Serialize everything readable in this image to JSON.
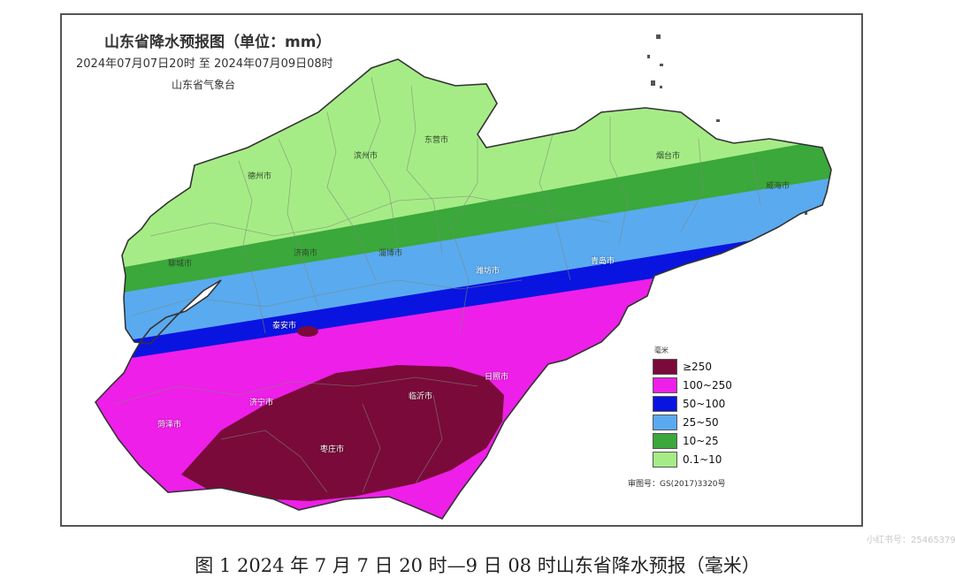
{
  "map": {
    "title": "山东省降水预报图（单位：mm）",
    "valid_period": "2024年07月07日20时  至  2024年07月09日08时",
    "agency": "山东省气象台",
    "approval_number": "审图号：GS(2017)3320号"
  },
  "legend": {
    "unit": "毫米",
    "items": [
      {
        "label": "≥250",
        "color": "#7a0a3a"
      },
      {
        "label": "100~250",
        "color": "#ee1fe8"
      },
      {
        "label": "50~100",
        "color": "#0a14e0"
      },
      {
        "label": "25~50",
        "color": "#5aaaf0"
      },
      {
        "label": "10~25",
        "color": "#3aa83a"
      },
      {
        "label": "0.1~10",
        "color": "#a6ec86"
      }
    ]
  },
  "cities": [
    {
      "name": "德州市",
      "tone": "dark"
    },
    {
      "name": "滨州市",
      "tone": "dark"
    },
    {
      "name": "东营市",
      "tone": "dark"
    },
    {
      "name": "烟台市",
      "tone": "dark"
    },
    {
      "name": "威海市",
      "tone": "dark"
    },
    {
      "name": "聊城市",
      "tone": "dark"
    },
    {
      "name": "济南市",
      "tone": "dark"
    },
    {
      "name": "淄博市",
      "tone": "dark"
    },
    {
      "name": "潍坊市",
      "tone": "light"
    },
    {
      "name": "青岛市",
      "tone": "light"
    },
    {
      "name": "泰安市",
      "tone": "light"
    },
    {
      "name": "日照市",
      "tone": "light"
    },
    {
      "name": "临沂市",
      "tone": "light"
    },
    {
      "name": "济宁市",
      "tone": "light"
    },
    {
      "name": "菏泽市",
      "tone": "light"
    },
    {
      "name": "枣庄市",
      "tone": "light"
    }
  ],
  "caption": "图 1 2024 年 7 月 7 日 20 时—9 日 08 时山东省降水预报（毫米）",
  "watermark": "小红书号：2546537913"
}
